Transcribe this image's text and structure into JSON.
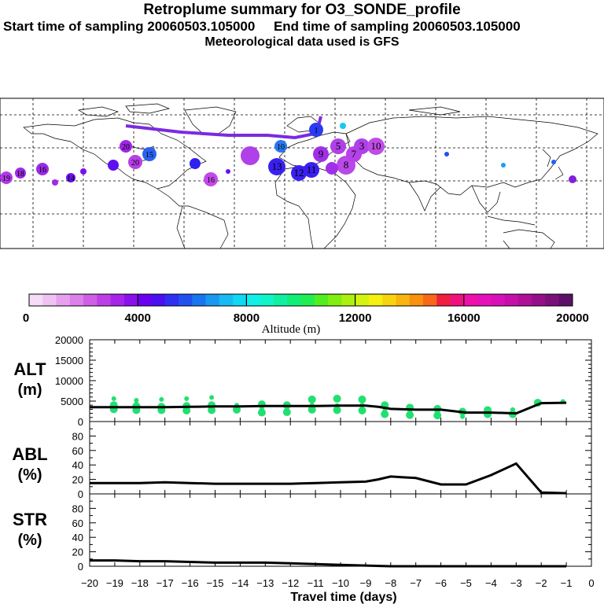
{
  "title": {
    "line1": "Retroplume summary for O3_SONDE_profile",
    "line2": "Start time of sampling 20060503.105000     End time of sampling 20060503.105000",
    "line3": "Meteorological data used is GFS"
  },
  "colors": {
    "alt_points": "#22e070",
    "line": "#000000",
    "map_land": "#ffffff",
    "trajectory": "#7a2be0"
  },
  "colorbar": {
    "tick_labels": [
      "0",
      "4000",
      "8000",
      "12000",
      "16000",
      "20000"
    ],
    "label": "Altitude (m)",
    "colors": [
      "#f6dcf6",
      "#efc2f2",
      "#e6a0ee",
      "#dc80ea",
      "#cf5fe6",
      "#bd3fe6",
      "#a526e8",
      "#8a10ec",
      "#6a00f0",
      "#4a10f2",
      "#3030f2",
      "#2050f0",
      "#1874ef",
      "#1898f0",
      "#18baf2",
      "#10d8f0",
      "#10f0e8",
      "#10f4c8",
      "#10f0a0",
      "#10ee78",
      "#20ee50",
      "#50ee20",
      "#80ee10",
      "#aaf010",
      "#d4f410",
      "#f4f010",
      "#f8d410",
      "#f8b410",
      "#f89010",
      "#f86818",
      "#f02040",
      "#f01080",
      "#ee10a8",
      "#e610b8",
      "#d810b8",
      "#c410a8",
      "#ae1098",
      "#941088",
      "#7a1078",
      "#5e1068"
    ]
  },
  "map": {
    "markers": [
      {
        "label": "19",
        "color": "#b03aea"
      },
      {
        "label": "18",
        "color": "#a02ae6"
      },
      {
        "label": "16",
        "color": "#9c2ae8"
      },
      {
        "label": "14",
        "color": "#6a10f0"
      },
      {
        "label": "20",
        "color": "#b83ee8"
      },
      {
        "label": "20",
        "color": "#a024e8"
      },
      {
        "label": "15",
        "color": "#2a62f0"
      },
      {
        "label": "10",
        "color": "#2878f0"
      },
      {
        "label": "16",
        "color": "#c24ae8"
      },
      {
        "label": "13",
        "color": "#3a20f0"
      },
      {
        "label": "12",
        "color": "#3a20f0"
      },
      {
        "label": "11",
        "color": "#3a20f0"
      },
      {
        "label": "9",
        "color": "#a030e8"
      },
      {
        "label": "8",
        "color": "#b848e8"
      },
      {
        "label": "7",
        "color": "#b840e8"
      },
      {
        "label": "5",
        "color": "#b040e8"
      },
      {
        "label": "3",
        "color": "#b040e8"
      },
      {
        "label": "10",
        "color": "#c04ce8"
      },
      {
        "label": "1",
        "color": "#2a3af2"
      }
    ]
  },
  "panels": {
    "alt": {
      "label": "ALT",
      "unit": "(m)",
      "y_ticks": [
        "0",
        "5000",
        "10000",
        "15000",
        "20000"
      ],
      "ylim": [
        0,
        20000
      ]
    },
    "abl": {
      "label": "ABL",
      "unit": "(%)",
      "y_ticks": [
        "0",
        "20",
        "40",
        "60",
        "80"
      ],
      "ylim": [
        0,
        100
      ]
    },
    "str": {
      "label": "STR",
      "unit": "(%)",
      "y_ticks": [
        "0",
        "20",
        "40",
        "60",
        "80"
      ],
      "ylim": [
        0,
        100
      ]
    }
  },
  "xaxis": {
    "label": "Travel time (days)",
    "tick_labels": [
      "−20",
      "−19",
      "−18",
      "−17",
      "−16",
      "−15",
      "−14",
      "−13",
      "−12",
      "−11",
      "−10",
      "−9",
      "−8",
      "−7",
      "−6",
      "−5",
      "−4",
      "−3",
      "−2",
      "−1",
      "0"
    ]
  },
  "chart_data": [
    {
      "type": "line",
      "title": "ALT",
      "ylabel": "ALT (m)",
      "xlabel": "Travel time (days)",
      "xlim": [
        -20,
        0
      ],
      "ylim": [
        0,
        20000
      ],
      "x": [
        -20,
        -19,
        -18,
        -17,
        -16,
        -15,
        -14,
        -13,
        -12,
        -11,
        -10,
        -9,
        -8.5,
        -8,
        -7,
        -6,
        -5,
        -4,
        -3,
        -2,
        -1
      ],
      "values": [
        3500,
        3500,
        3500,
        3500,
        3600,
        3700,
        3700,
        3800,
        3800,
        3800,
        3900,
        3900,
        3600,
        3100,
        2900,
        2900,
        2200,
        2200,
        2000,
        4500,
        4600
      ],
      "scatter": {
        "x": [
          -19.1,
          -19.1,
          -19.1,
          -18.2,
          -18.2,
          -18.2,
          -17.2,
          -17.2,
          -17.2,
          -16.2,
          -16.2,
          -16.2,
          -15.2,
          -15.2,
          -15.2,
          -14.2,
          -14.2,
          -13.2,
          -13.2,
          -13.2,
          -12.2,
          -12.2,
          -12.2,
          -11.2,
          -11.2,
          -11.2,
          -10.2,
          -10.2,
          -10.2,
          -9.2,
          -9.2,
          -9.2,
          -8.3,
          -8.3,
          -8.3,
          -7.3,
          -7.3,
          -7.3,
          -6.2,
          -6.2,
          -6.2,
          -5.2,
          -5.2,
          -4.2,
          -4.2,
          -3.2,
          -3.2,
          -2.2,
          -1.2
        ],
        "values": [
          5600,
          4000,
          3000,
          5200,
          3800,
          2800,
          5400,
          3600,
          2800,
          5600,
          3800,
          2700,
          5900,
          4000,
          2800,
          4000,
          2900,
          4200,
          3000,
          2200,
          4000,
          3000,
          2300,
          5400,
          4000,
          2900,
          5600,
          3900,
          2800,
          5400,
          4000,
          2700,
          4000,
          2600,
          1800,
          3400,
          2400,
          1600,
          3100,
          2500,
          1500,
          2400,
          1200,
          2800,
          1800,
          2900,
          1800,
          4600,
          4900
        ]
      }
    },
    {
      "type": "line",
      "title": "ABL",
      "ylabel": "ABL (%)",
      "xlabel": "Travel time (days)",
      "xlim": [
        -20,
        0
      ],
      "ylim": [
        0,
        100
      ],
      "x": [
        -20,
        -19,
        -18,
        -17,
        -16,
        -15,
        -14,
        -13,
        -12,
        -11,
        -10,
        -9,
        -8.5,
        -8,
        -7,
        -6,
        -5,
        -4,
        -3,
        -2,
        -1
      ],
      "values": [
        15,
        15,
        15,
        16,
        15,
        14,
        14,
        14,
        14,
        15,
        16,
        17,
        20,
        24,
        22,
        13,
        13,
        26,
        42,
        2,
        1
      ]
    },
    {
      "type": "line",
      "title": "STR",
      "ylabel": "STR (%)",
      "xlabel": "Travel time (days)",
      "xlim": [
        -20,
        0
      ],
      "ylim": [
        0,
        100
      ],
      "x": [
        -20,
        -19,
        -18,
        -17,
        -16,
        -15,
        -14,
        -13,
        -12,
        -11,
        -10,
        -9,
        -8,
        -7,
        -6,
        -5,
        -4,
        -3,
        -2,
        -1
      ],
      "values": [
        8,
        8,
        7,
        7,
        6,
        5,
        5,
        5,
        4,
        3,
        2,
        1,
        0,
        0,
        0,
        0,
        0,
        0,
        0,
        0
      ]
    }
  ]
}
